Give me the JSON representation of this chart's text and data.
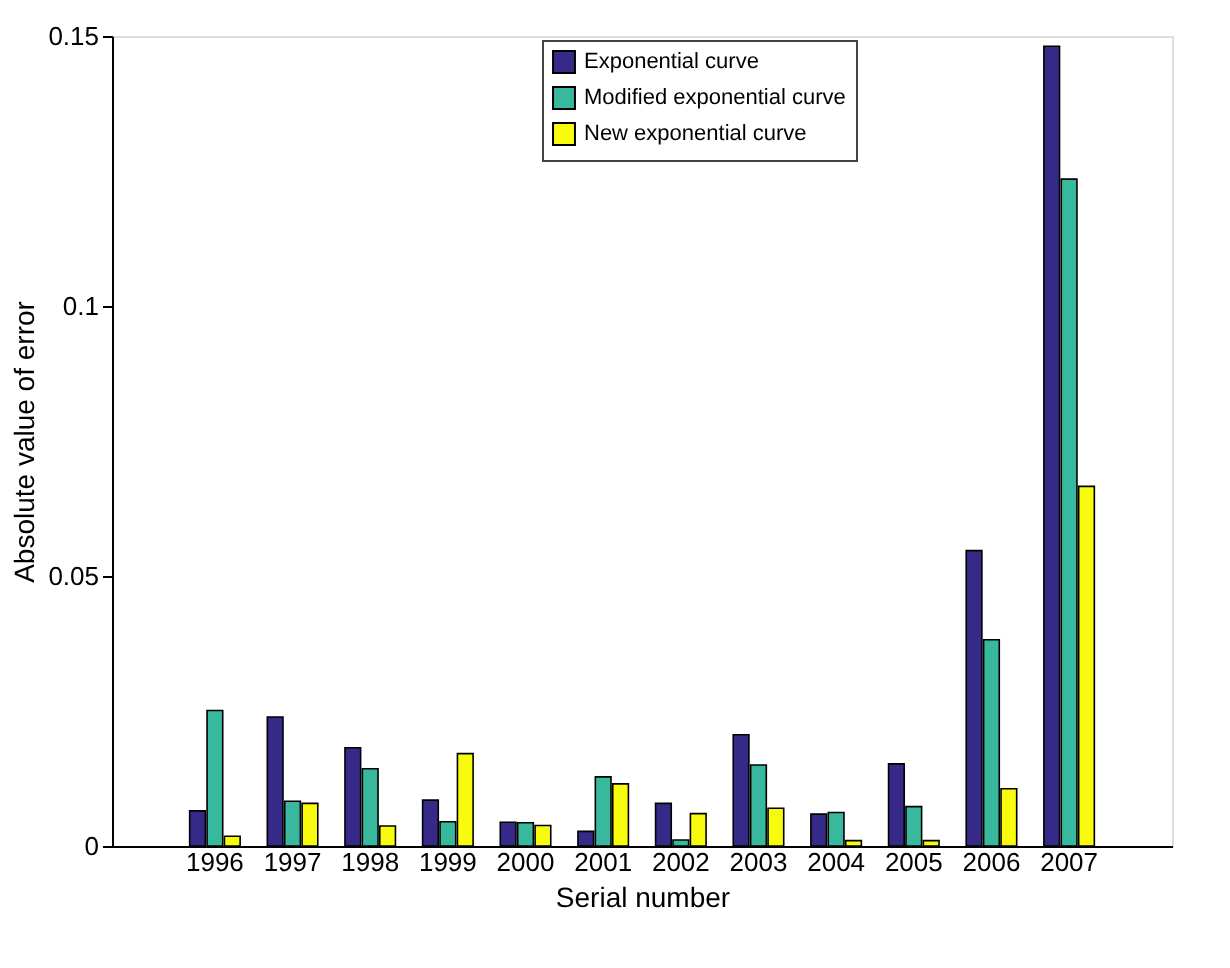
{
  "chart_data": {
    "type": "bar",
    "xlabel": "Serial number",
    "ylabel": "Absolute value of error",
    "categories": [
      "1996",
      "1997",
      "1998",
      "1999",
      "2000",
      "2001",
      "2002",
      "2003",
      "2004",
      "2005",
      "2006",
      "2007"
    ],
    "series": [
      {
        "name": "Exponential curve",
        "color": "#352a87",
        "values": [
          0.0065,
          0.0239,
          0.0182,
          0.0085,
          0.0044,
          0.0027,
          0.0079,
          0.0206,
          0.0059,
          0.0152,
          0.0547,
          0.1481
        ]
      },
      {
        "name": "Modified exponential curve",
        "color": "#38b99e",
        "values": [
          0.0251,
          0.0083,
          0.0143,
          0.0045,
          0.0043,
          0.0128,
          0.0011,
          0.015,
          0.0062,
          0.0073,
          0.0382,
          0.1235
        ]
      },
      {
        "name": "New exponential curve",
        "color": "#f9fb0e",
        "values": [
          0.0018,
          0.0079,
          0.0037,
          0.0171,
          0.0038,
          0.0115,
          0.006,
          0.007,
          0.001,
          0.001,
          0.0106,
          0.0666
        ]
      }
    ],
    "ylim": [
      0,
      0.15
    ],
    "yticks": [
      0,
      0.05,
      0.1,
      0.15
    ],
    "grid": false,
    "legend": "top"
  }
}
